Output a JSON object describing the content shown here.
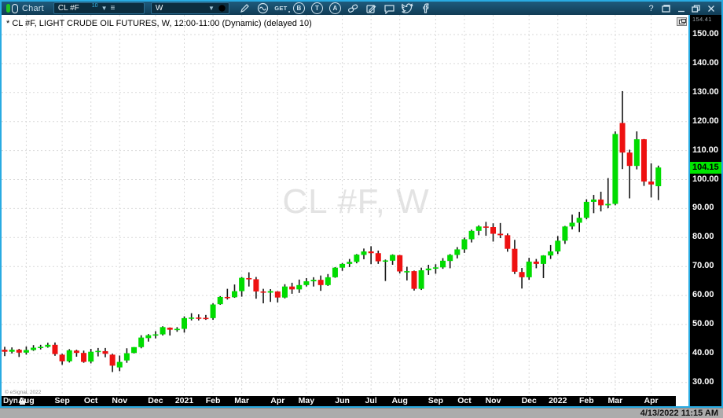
{
  "window": {
    "app_label": "Chart",
    "controls": [
      "help",
      "dock",
      "minimize",
      "restore",
      "close"
    ]
  },
  "toolbar": {
    "symbol": "CL #F",
    "symbol_flag": "10",
    "interval": "W",
    "get_label": "GET",
    "circle_b": "B",
    "circle_t": "T",
    "circle_a": "A",
    "icons": [
      "draw-pencil-icon",
      "studies-wave-icon",
      "get-quotes-icon",
      "circle-b-icon",
      "circle-t-icon",
      "circle-a-icon",
      "link-icon",
      "notes-icon",
      "chat-icon",
      "twitter-icon",
      "facebook-icon"
    ]
  },
  "chart": {
    "title": "* CL #F, LIGHT CRUDE OIL FUTURES, W, 12:00-11:00 (Dynamic) (delayed 10)",
    "watermark": "CL #F, W",
    "copyright": "© eSignal, 2022",
    "scale_top_label": "154.41"
  },
  "x_axis": {
    "dyn_label": "Dyn"
  },
  "status_bar": {
    "datetime": "4/13/2022 11:15 AM"
  },
  "chart_data": {
    "type": "candlestick",
    "symbol": "CL #F",
    "description": "LIGHT CRUDE OIL FUTURES",
    "interval": "W",
    "last_price": 104.15,
    "colors": {
      "up": "#00DC00",
      "down": "#EE1111",
      "wick": "#151515",
      "badge": "#00E600",
      "accent": "#29ABE2"
    },
    "y_axis": {
      "min": 26,
      "max": 154.41,
      "tick_step": 10,
      "ticks": [
        150,
        140,
        130,
        120,
        110,
        100,
        90,
        80,
        70,
        60,
        50,
        40,
        30
      ]
    },
    "x_axis_months": [
      {
        "label": "Aug",
        "week": 3
      },
      {
        "label": "Sep",
        "week": 8
      },
      {
        "label": "Oct",
        "week": 12
      },
      {
        "label": "Nov",
        "week": 16
      },
      {
        "label": "Dec",
        "week": 21
      },
      {
        "label": "2021",
        "week": 25
      },
      {
        "label": "Feb",
        "week": 29
      },
      {
        "label": "Mar",
        "week": 33
      },
      {
        "label": "Apr",
        "week": 38
      },
      {
        "label": "May",
        "week": 42
      },
      {
        "label": "Jun",
        "week": 47
      },
      {
        "label": "Jul",
        "week": 51
      },
      {
        "label": "Aug",
        "week": 55
      },
      {
        "label": "Sep",
        "week": 60
      },
      {
        "label": "Oct",
        "week": 64
      },
      {
        "label": "Nov",
        "week": 68
      },
      {
        "label": "Dec",
        "week": 73
      },
      {
        "label": "2022",
        "week": 77
      },
      {
        "label": "Feb",
        "week": 81
      },
      {
        "label": "Mar",
        "week": 85
      },
      {
        "label": "Apr",
        "week": 90
      }
    ],
    "candles": [
      [
        41.3,
        42.3,
        39.1,
        40.6
      ],
      [
        40.6,
        42.1,
        40.0,
        41.3
      ],
      [
        41.3,
        41.6,
        38.8,
        40.3
      ],
      [
        40.3,
        42.4,
        39.6,
        41.2
      ],
      [
        41.2,
        42.9,
        40.9,
        42.0
      ],
      [
        42.0,
        43.0,
        41.4,
        42.3
      ],
      [
        42.3,
        43.7,
        42.0,
        43.0
      ],
      [
        43.0,
        43.8,
        39.2,
        39.8
      ],
      [
        39.6,
        39.9,
        36.1,
        37.3
      ],
      [
        37.3,
        41.5,
        36.9,
        41.1
      ],
      [
        41.0,
        41.3,
        38.9,
        40.2
      ],
      [
        40.2,
        41.0,
        36.8,
        37.1
      ],
      [
        37.2,
        41.6,
        36.6,
        40.6
      ],
      [
        40.5,
        41.9,
        39.0,
        40.9
      ],
      [
        40.8,
        41.9,
        38.7,
        39.9
      ],
      [
        39.6,
        39.9,
        33.6,
        35.8
      ],
      [
        35.2,
        39.3,
        33.9,
        37.1
      ],
      [
        37.6,
        41.8,
        36.8,
        40.1
      ],
      [
        40.2,
        42.2,
        40.0,
        42.2
      ],
      [
        42.2,
        46.3,
        41.8,
        45.5
      ],
      [
        45.3,
        46.7,
        44.1,
        46.3
      ],
      [
        46.3,
        47.7,
        45.2,
        46.6
      ],
      [
        46.6,
        49.4,
        46.2,
        49.1
      ],
      [
        48.9,
        49.0,
        46.2,
        48.2
      ],
      [
        48.2,
        49.1,
        47.5,
        48.5
      ],
      [
        48.5,
        52.8,
        47.2,
        52.2
      ],
      [
        52.3,
        53.9,
        51.4,
        52.4
      ],
      [
        52.4,
        53.5,
        51.4,
        52.3
      ],
      [
        52.3,
        53.3,
        51.6,
        52.2
      ],
      [
        52.2,
        57.3,
        51.6,
        56.9
      ],
      [
        57.0,
        59.8,
        56.8,
        59.5
      ],
      [
        59.5,
        62.3,
        58.6,
        59.2
      ],
      [
        59.4,
        63.8,
        59.2,
        61.5
      ],
      [
        61.5,
        66.4,
        59.6,
        66.1
      ],
      [
        66.0,
        68.0,
        63.1,
        65.6
      ],
      [
        65.6,
        66.4,
        58.9,
        61.4
      ],
      [
        61.4,
        62.3,
        57.3,
        61.0
      ],
      [
        61.0,
        62.2,
        57.8,
        61.5
      ],
      [
        61.4,
        61.5,
        57.6,
        59.3
      ],
      [
        59.3,
        63.9,
        59.0,
        63.1
      ],
      [
        63.1,
        64.4,
        60.6,
        62.1
      ],
      [
        62.1,
        65.5,
        60.9,
        63.6
      ],
      [
        63.6,
        66.0,
        63.1,
        64.9
      ],
      [
        64.9,
        66.3,
        63.1,
        65.4
      ],
      [
        65.4,
        66.9,
        61.6,
        63.6
      ],
      [
        63.6,
        67.4,
        63.3,
        66.3
      ],
      [
        66.3,
        69.8,
        66.1,
        69.6
      ],
      [
        69.6,
        71.2,
        68.5,
        70.9
      ],
      [
        70.9,
        72.6,
        69.8,
        71.6
      ],
      [
        71.6,
        74.3,
        71.1,
        74.1
      ],
      [
        74.0,
        76.2,
        72.5,
        75.2
      ],
      [
        75.2,
        77.0,
        70.8,
        74.6
      ],
      [
        74.6,
        75.5,
        70.9,
        71.8
      ],
      [
        71.8,
        72.4,
        65.0,
        72.1
      ],
      [
        72.0,
        74.2,
        70.6,
        74.0
      ],
      [
        73.9,
        74.0,
        67.6,
        68.3
      ],
      [
        68.3,
        69.9,
        65.2,
        68.4
      ],
      [
        68.4,
        68.6,
        61.7,
        62.3
      ],
      [
        62.3,
        69.6,
        61.9,
        68.7
      ],
      [
        68.7,
        70.6,
        67.1,
        69.3
      ],
      [
        69.3,
        70.8,
        67.5,
        69.7
      ],
      [
        69.7,
        72.9,
        69.2,
        72.0
      ],
      [
        71.9,
        74.3,
        69.4,
        74.0
      ],
      [
        74.0,
        76.7,
        72.8,
        75.9
      ],
      [
        75.9,
        80.0,
        74.7,
        79.4
      ],
      [
        79.4,
        82.7,
        78.3,
        82.3
      ],
      [
        82.3,
        84.2,
        80.8,
        83.8
      ],
      [
        83.8,
        85.4,
        80.6,
        83.6
      ],
      [
        83.6,
        84.9,
        78.6,
        81.3
      ],
      [
        81.3,
        85.0,
        79.8,
        80.8
      ],
      [
        80.8,
        81.4,
        75.1,
        76.1
      ],
      [
        76.1,
        79.2,
        67.4,
        68.2
      ],
      [
        68.1,
        69.5,
        62.4,
        66.3
      ],
      [
        66.3,
        73.0,
        65.4,
        71.7
      ],
      [
        71.7,
        72.6,
        69.4,
        70.9
      ],
      [
        70.9,
        73.9,
        66.0,
        73.8
      ],
      [
        73.8,
        77.4,
        72.6,
        75.2
      ],
      [
        75.2,
        80.5,
        74.3,
        78.9
      ],
      [
        78.9,
        84.0,
        77.8,
        83.8
      ],
      [
        83.8,
        87.9,
        82.8,
        85.1
      ],
      [
        85.1,
        88.8,
        81.9,
        86.8
      ],
      [
        86.8,
        93.2,
        86.3,
        92.3
      ],
      [
        92.3,
        94.7,
        88.4,
        93.1
      ],
      [
        93.1,
        95.8,
        89.0,
        91.1
      ],
      [
        91.1,
        100.5,
        90.1,
        91.6
      ],
      [
        91.6,
        116.6,
        91.1,
        115.7
      ],
      [
        119.5,
        130.5,
        103.6,
        109.3
      ],
      [
        109.3,
        110.3,
        93.5,
        104.7
      ],
      [
        104.7,
        116.6,
        103.5,
        113.9
      ],
      [
        113.9,
        114.0,
        97.8,
        99.3
      ],
      [
        99.3,
        105.6,
        93.8,
        98.3
      ],
      [
        97.7,
        104.8,
        92.9,
        104.15
      ]
    ]
  }
}
